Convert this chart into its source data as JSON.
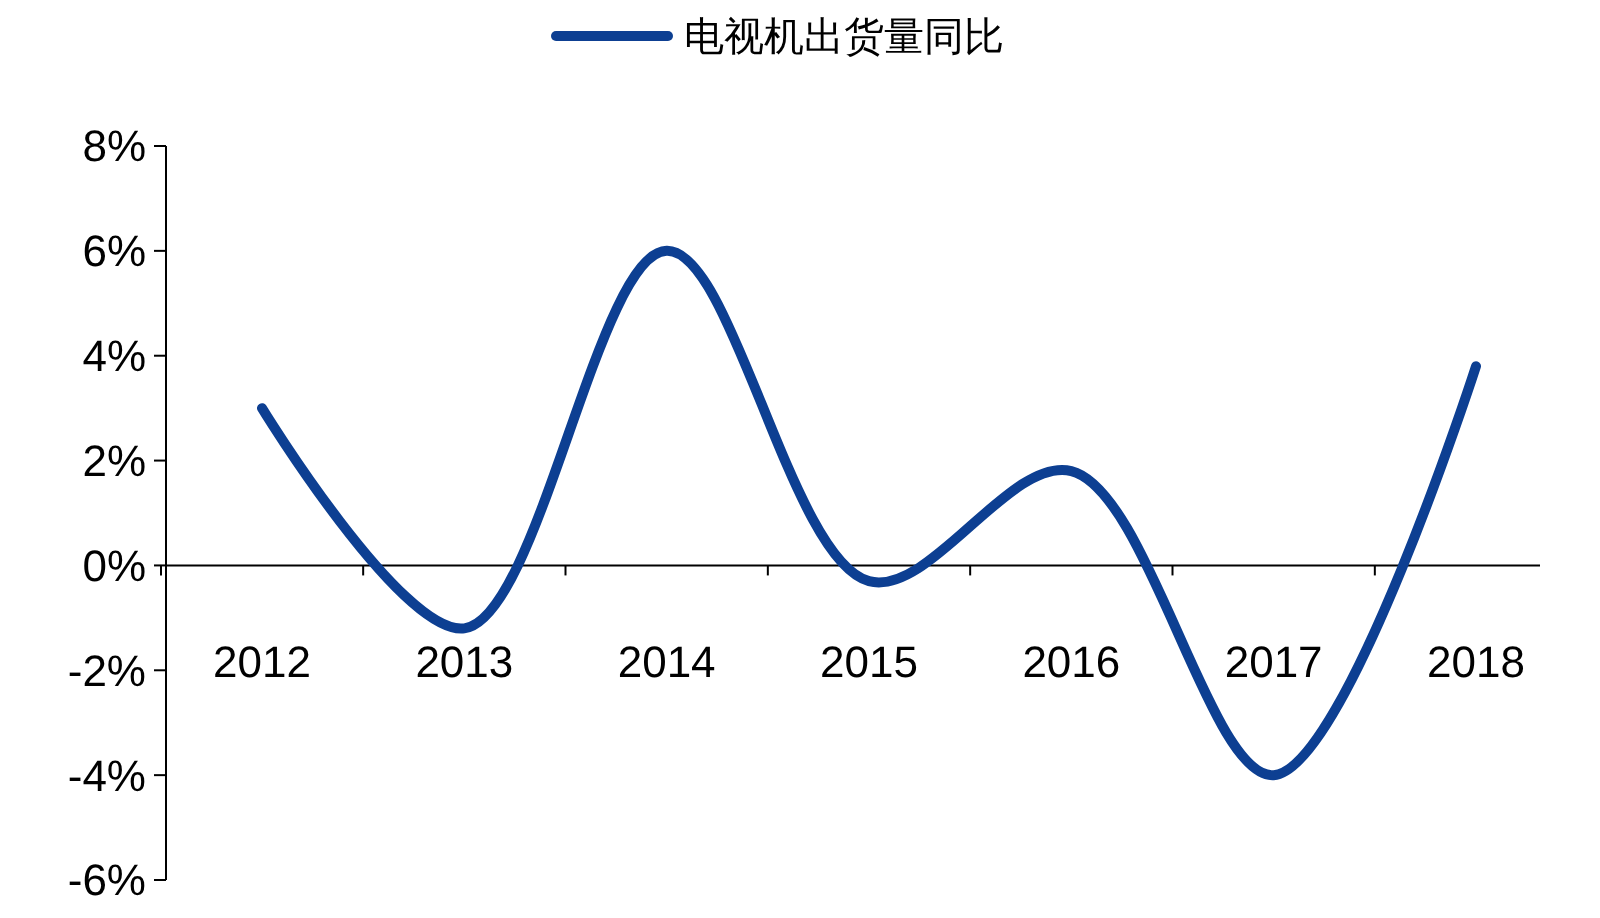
{
  "chart_data": {
    "type": "line",
    "categories": [
      "2012",
      "2013",
      "2014",
      "2015",
      "2016",
      "2017",
      "2018"
    ],
    "series": [
      {
        "name": "电视机出货量同比",
        "color": "#0d3f92",
        "values": [
          3.0,
          -1.2,
          6.0,
          -0.3,
          1.8,
          -4.0,
          3.8
        ]
      }
    ],
    "ylim": [
      -6,
      8
    ],
    "yticks": [
      {
        "value": -6,
        "label": "-6%"
      },
      {
        "value": -4,
        "label": "-4%"
      },
      {
        "value": -2,
        "label": "-2%"
      },
      {
        "value": 0,
        "label": "0%"
      },
      {
        "value": 2,
        "label": "2%"
      },
      {
        "value": 4,
        "label": "4%"
      },
      {
        "value": 6,
        "label": "6%"
      },
      {
        "value": 8,
        "label": "8%"
      }
    ],
    "grid": false,
    "legend": "top",
    "marker": "none",
    "line_style": "solid"
  }
}
